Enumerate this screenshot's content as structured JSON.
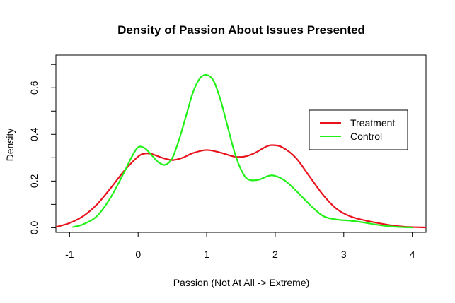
{
  "chart_data": {
    "type": "line",
    "title": "Density of Passion About Issues Presented",
    "xlabel": "Passion (Not At All -> Extreme)",
    "ylabel": "Density",
    "xlim": [
      -1.2,
      4.2
    ],
    "ylim": [
      -0.02,
      0.74
    ],
    "x_ticks": [
      -1,
      0,
      1,
      2,
      3,
      4
    ],
    "x_tick_labels": [
      "-1",
      "0",
      "1",
      "2",
      "3",
      "4"
    ],
    "y_ticks": [
      0.0,
      0.2,
      0.4,
      0.6
    ],
    "y_tick_labels": [
      "0.0",
      "0.2",
      "0.4",
      "0.6"
    ],
    "legend_position": "right",
    "series": [
      {
        "name": "Treatment",
        "color": "#e8121d",
        "points": [
          [
            -1.2,
            0.003
          ],
          [
            -1.0,
            0.02
          ],
          [
            -0.8,
            0.05
          ],
          [
            -0.6,
            0.1
          ],
          [
            -0.4,
            0.17
          ],
          [
            -0.2,
            0.245
          ],
          [
            0.0,
            0.305
          ],
          [
            0.1,
            0.318
          ],
          [
            0.2,
            0.316
          ],
          [
            0.35,
            0.3
          ],
          [
            0.5,
            0.29
          ],
          [
            0.65,
            0.3
          ],
          [
            0.8,
            0.32
          ],
          [
            1.0,
            0.333
          ],
          [
            1.2,
            0.322
          ],
          [
            1.4,
            0.305
          ],
          [
            1.55,
            0.305
          ],
          [
            1.7,
            0.32
          ],
          [
            1.85,
            0.345
          ],
          [
            1.95,
            0.354
          ],
          [
            2.1,
            0.345
          ],
          [
            2.3,
            0.3
          ],
          [
            2.5,
            0.22
          ],
          [
            2.7,
            0.14
          ],
          [
            2.9,
            0.08
          ],
          [
            3.1,
            0.048
          ],
          [
            3.3,
            0.032
          ],
          [
            3.5,
            0.02
          ],
          [
            3.7,
            0.01
          ],
          [
            3.9,
            0.004
          ],
          [
            4.2,
            0.001
          ]
        ]
      },
      {
        "name": "Control",
        "color": "#22f019",
        "points": [
          [
            -0.95,
            0.003
          ],
          [
            -0.8,
            0.015
          ],
          [
            -0.6,
            0.05
          ],
          [
            -0.4,
            0.13
          ],
          [
            -0.2,
            0.24
          ],
          [
            -0.1,
            0.3
          ],
          [
            0.0,
            0.345
          ],
          [
            0.1,
            0.34
          ],
          [
            0.2,
            0.31
          ],
          [
            0.3,
            0.28
          ],
          [
            0.4,
            0.27
          ],
          [
            0.5,
            0.3
          ],
          [
            0.6,
            0.38
          ],
          [
            0.7,
            0.48
          ],
          [
            0.8,
            0.58
          ],
          [
            0.9,
            0.64
          ],
          [
            1.0,
            0.655
          ],
          [
            1.1,
            0.63
          ],
          [
            1.2,
            0.55
          ],
          [
            1.3,
            0.44
          ],
          [
            1.4,
            0.33
          ],
          [
            1.5,
            0.25
          ],
          [
            1.6,
            0.208
          ],
          [
            1.75,
            0.205
          ],
          [
            1.9,
            0.222
          ],
          [
            2.0,
            0.222
          ],
          [
            2.15,
            0.2
          ],
          [
            2.3,
            0.16
          ],
          [
            2.5,
            0.1
          ],
          [
            2.7,
            0.05
          ],
          [
            2.9,
            0.035
          ],
          [
            3.1,
            0.03
          ],
          [
            3.3,
            0.022
          ],
          [
            3.5,
            0.012
          ],
          [
            3.7,
            0.005
          ],
          [
            3.9,
            0.002
          ],
          [
            4.0,
            0.001
          ]
        ]
      }
    ]
  }
}
